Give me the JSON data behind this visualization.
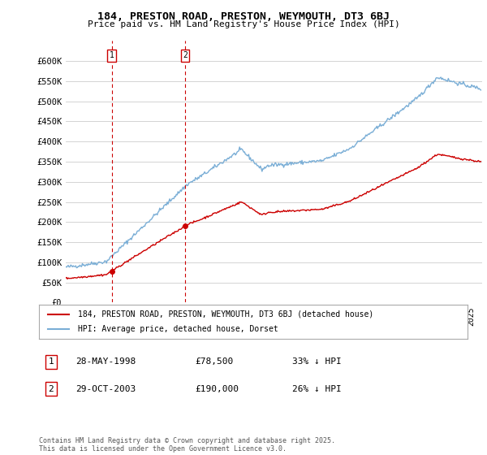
{
  "title": "184, PRESTON ROAD, PRESTON, WEYMOUTH, DT3 6BJ",
  "subtitle": "Price paid vs. HM Land Registry's House Price Index (HPI)",
  "legend_line1": "184, PRESTON ROAD, PRESTON, WEYMOUTH, DT3 6BJ (detached house)",
  "legend_line2": "HPI: Average price, detached house, Dorset",
  "annotation1_label": "1",
  "annotation1_date": "28-MAY-1998",
  "annotation1_price": "£78,500",
  "annotation1_hpi": "33% ↓ HPI",
  "annotation1_year": 1998.41,
  "annotation1_value": 78500,
  "annotation2_label": "2",
  "annotation2_date": "29-OCT-2003",
  "annotation2_price": "£190,000",
  "annotation2_hpi": "26% ↓ HPI",
  "annotation2_year": 2003.83,
  "annotation2_value": 190000,
  "red_color": "#cc0000",
  "blue_color": "#7aaed6",
  "grid_color": "#cccccc",
  "background_color": "#ffffff",
  "footer_text": "Contains HM Land Registry data © Crown copyright and database right 2025.\nThis data is licensed under the Open Government Licence v3.0.",
  "ylim_max": 650000,
  "ytick_values": [
    0,
    50000,
    100000,
    150000,
    200000,
    250000,
    300000,
    350000,
    400000,
    450000,
    500000,
    550000,
    600000
  ],
  "ytick_labels": [
    "£0",
    "£50K",
    "£100K",
    "£150K",
    "£200K",
    "£250K",
    "£300K",
    "£350K",
    "£400K",
    "£450K",
    "£500K",
    "£550K",
    "£600K"
  ],
  "xlim_start": 1995,
  "xlim_end": 2025.8
}
